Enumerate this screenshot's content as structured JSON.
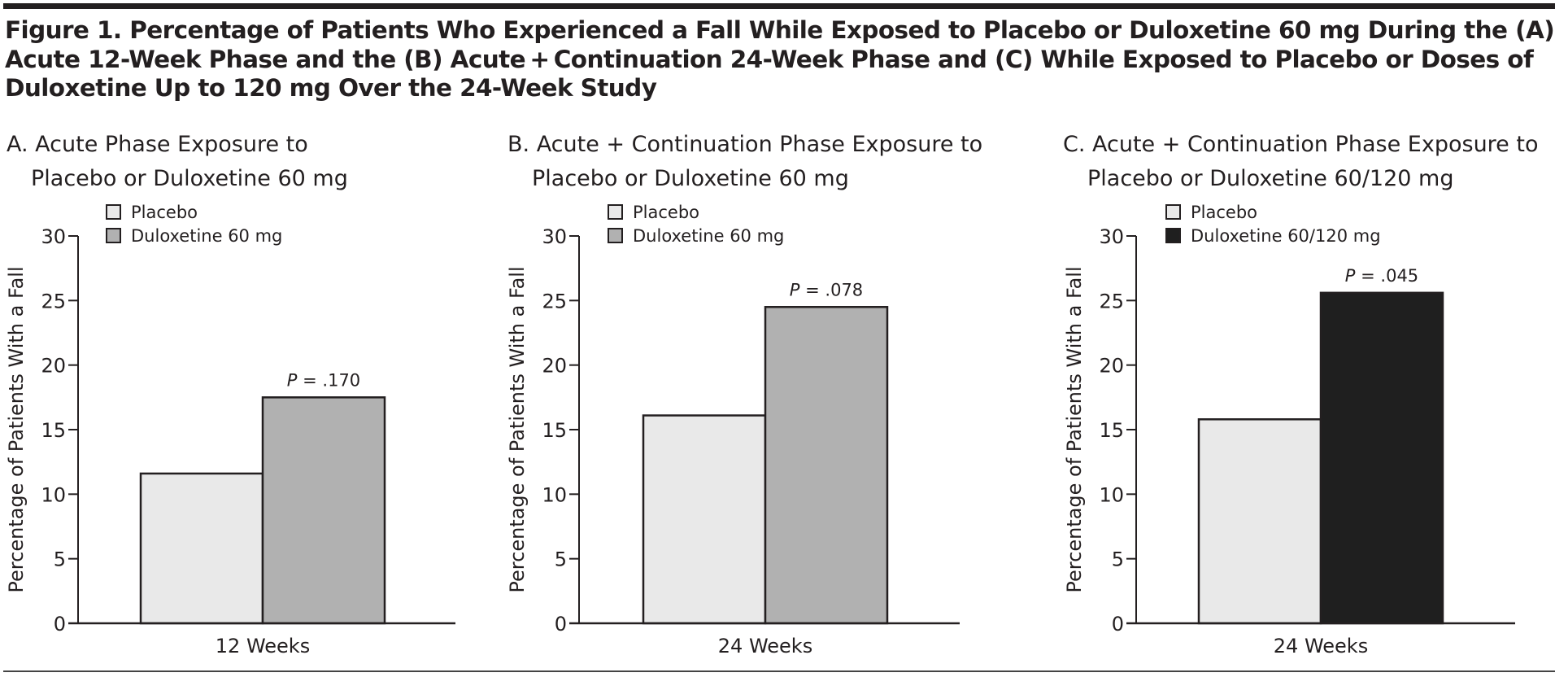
{
  "figure": {
    "title_lines": [
      "Figure 1. Percentage of Patients Who Experienced a Fall While Exposed to Placebo or Duloxetine 60 mg During the (A)",
      "Acute 12-Week Phase and the (B) Acute + Continuation 24-Week Phase and (C) While Exposed to Placebo or Doses of",
      "Duloxetine Up to 120 mg Over the 24-Week Study"
    ]
  },
  "colors": {
    "placebo": "#e9e9e9",
    "duloxetine_60": "#b1b1b1",
    "duloxetine_60_120": "#1f1f1f",
    "ink": "#231f20"
  },
  "chart_data": [
    {
      "type": "bar",
      "panel": "A",
      "title_lines": [
        "A. Acute Phase Exposure to",
        "Placebo or Duloxetine 60 mg"
      ],
      "categories": [
        "12 Weeks"
      ],
      "series": [
        {
          "name": "Placebo",
          "values": [
            11.6
          ],
          "color_key": "placebo"
        },
        {
          "name": "Duloxetine 60 mg",
          "values": [
            17.5
          ],
          "color_key": "duloxetine_60"
        }
      ],
      "annotation": {
        "italic": "P",
        "text": " = .170",
        "series_index": 1
      },
      "xlabel": "",
      "ylabel": "Percentage of Patients With a Fall",
      "ylim": [
        0,
        30
      ],
      "yticks": [
        0,
        5,
        10,
        15,
        20,
        25,
        30
      ],
      "grid": false,
      "legend_position": "top-left"
    },
    {
      "type": "bar",
      "panel": "B",
      "title_lines": [
        "B. Acute + Continuation Phase Exposure to",
        "Placebo or Duloxetine 60 mg"
      ],
      "categories": [
        "24 Weeks"
      ],
      "series": [
        {
          "name": "Placebo",
          "values": [
            16.1
          ],
          "color_key": "placebo"
        },
        {
          "name": "Duloxetine 60 mg",
          "values": [
            24.5
          ],
          "color_key": "duloxetine_60"
        }
      ],
      "annotation": {
        "italic": "P",
        "text": " = .078",
        "series_index": 1
      },
      "xlabel": "",
      "ylabel": "Percentage of Patients With a Fall",
      "ylim": [
        0,
        30
      ],
      "yticks": [
        0,
        5,
        10,
        15,
        20,
        25,
        30
      ],
      "grid": false,
      "legend_position": "top-left"
    },
    {
      "type": "bar",
      "panel": "C",
      "title_lines": [
        "C. Acute + Continuation Phase Exposure to",
        "Placebo or Duloxetine 60/120 mg"
      ],
      "categories": [
        "24 Weeks"
      ],
      "series": [
        {
          "name": "Placebo",
          "values": [
            15.8
          ],
          "color_key": "placebo"
        },
        {
          "name": "Duloxetine 60/120 mg",
          "values": [
            25.6
          ],
          "color_key": "duloxetine_60_120"
        }
      ],
      "annotation": {
        "italic": "P",
        "text": " = .045",
        "series_index": 1
      },
      "xlabel": "",
      "ylabel": "Percentage of Patients With a Fall",
      "ylim": [
        0,
        30
      ],
      "yticks": [
        0,
        5,
        10,
        15,
        20,
        25,
        30
      ],
      "grid": false,
      "legend_position": "top-left"
    }
  ]
}
